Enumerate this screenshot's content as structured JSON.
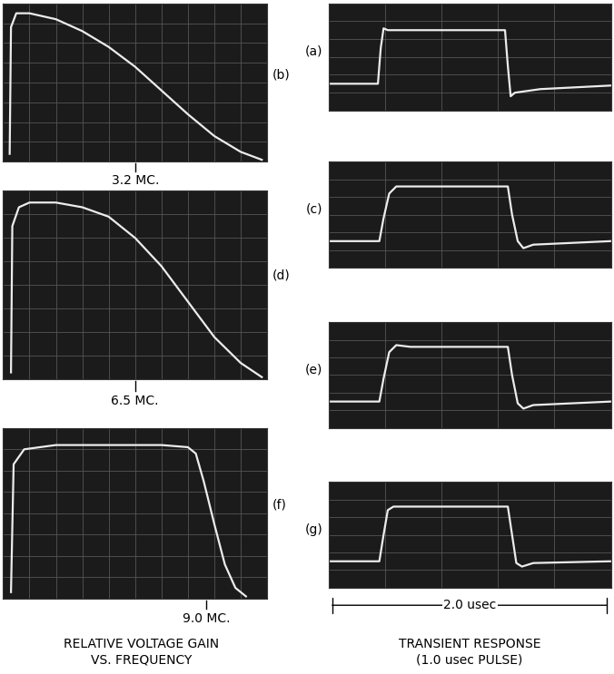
{
  "chart_data": [
    {
      "type": "line",
      "title": "(b)",
      "annotation": "3.2 MC.",
      "marker_x": 5.0,
      "x": [
        0.25,
        0.3,
        0.5,
        1,
        2,
        3,
        4,
        5,
        6,
        7,
        8,
        9,
        9.8
      ],
      "values": [
        0.4,
        6.8,
        7.5,
        7.5,
        7.2,
        6.6,
        5.8,
        4.8,
        3.6,
        2.4,
        1.3,
        0.5,
        0.1
      ],
      "xlim": [
        0,
        10
      ],
      "ylim": [
        0,
        8
      ],
      "xticks": [
        0,
        1,
        2,
        3,
        4,
        5,
        6,
        7,
        8,
        9,
        10
      ],
      "yticks": [
        0,
        1,
        2,
        3,
        4,
        5,
        6,
        7,
        8
      ],
      "grid": true,
      "tick_labels": false,
      "color": "#ececec"
    },
    {
      "type": "line",
      "title": "(d)",
      "annotation": "6.5 MC.",
      "marker_x": 5.0,
      "x": [
        0.3,
        0.35,
        0.6,
        1,
        2,
        3,
        4,
        5,
        6,
        7,
        8,
        9,
        9.8
      ],
      "values": [
        0.3,
        6.5,
        7.3,
        7.5,
        7.5,
        7.3,
        6.9,
        6.0,
        4.8,
        3.3,
        1.8,
        0.7,
        0.1
      ],
      "xlim": [
        0,
        10
      ],
      "ylim": [
        0,
        8
      ],
      "xticks": [
        0,
        1,
        2,
        3,
        4,
        5,
        6,
        7,
        8,
        9,
        10
      ],
      "yticks": [
        0,
        1,
        2,
        3,
        4,
        5,
        6,
        7,
        8
      ],
      "grid": true,
      "tick_labels": false,
      "color": "#ececec"
    },
    {
      "type": "line",
      "title": "(f)",
      "annotation": "9.0 MC.",
      "marker_x": 7.7,
      "x": [
        0.3,
        0.4,
        0.8,
        2,
        4,
        6,
        7,
        7.3,
        7.6,
        8,
        8.4,
        8.8,
        9.2
      ],
      "values": [
        0.3,
        6.3,
        7.0,
        7.2,
        7.2,
        7.2,
        7.1,
        6.8,
        5.5,
        3.5,
        1.6,
        0.5,
        0.1
      ],
      "xlim": [
        0,
        10
      ],
      "ylim": [
        0,
        8
      ],
      "xticks": [
        0,
        1,
        2,
        3,
        4,
        5,
        6,
        7,
        8,
        9,
        10
      ],
      "yticks": [
        0,
        1,
        2,
        3,
        4,
        5,
        6,
        7,
        8
      ],
      "grid": true,
      "tick_labels": false,
      "color": "#ececec"
    },
    {
      "type": "line",
      "title": "(a)",
      "x": [
        0,
        0.35,
        0.37,
        0.39,
        0.42,
        1.25,
        1.27,
        1.29,
        1.32,
        1.5,
        2.0
      ],
      "values": [
        1.5,
        1.5,
        3.5,
        4.6,
        4.5,
        4.5,
        2.5,
        0.8,
        1.0,
        1.2,
        1.4
      ],
      "xlim": [
        0,
        2.0
      ],
      "ylim": [
        0,
        6
      ],
      "xticks": [
        0,
        0.4,
        0.8,
        1.2,
        1.6,
        2.0
      ],
      "yticks": [
        0,
        1,
        2,
        3,
        4,
        5,
        6
      ],
      "grid": true,
      "tick_labels": false,
      "color": "#ececec"
    },
    {
      "type": "line",
      "title": "(c)",
      "x": [
        0,
        0.36,
        0.39,
        0.43,
        0.48,
        0.55,
        1.27,
        1.3,
        1.34,
        1.38,
        1.45,
        2.0
      ],
      "values": [
        1.5,
        1.5,
        2.8,
        4.2,
        4.6,
        4.6,
        4.6,
        3.0,
        1.5,
        1.1,
        1.3,
        1.5
      ],
      "xlim": [
        0,
        2.0
      ],
      "ylim": [
        0,
        6
      ],
      "xticks": [
        0,
        0.4,
        0.8,
        1.2,
        1.6,
        2.0
      ],
      "yticks": [
        0,
        1,
        2,
        3,
        4,
        5,
        6
      ],
      "grid": true,
      "tick_labels": false,
      "color": "#ececec"
    },
    {
      "type": "line",
      "title": "(e)",
      "x": [
        0,
        0.36,
        0.39,
        0.43,
        0.48,
        0.58,
        1.27,
        1.3,
        1.34,
        1.38,
        1.45,
        2.0
      ],
      "values": [
        1.5,
        1.5,
        2.8,
        4.3,
        4.7,
        4.6,
        4.6,
        3.0,
        1.4,
        1.1,
        1.3,
        1.5
      ],
      "xlim": [
        0,
        2.0
      ],
      "ylim": [
        0,
        6
      ],
      "xticks": [
        0,
        0.4,
        0.8,
        1.2,
        1.6,
        2.0
      ],
      "yticks": [
        0,
        1,
        2,
        3,
        4,
        5,
        6
      ],
      "grid": true,
      "tick_labels": false,
      "color": "#ececec"
    },
    {
      "type": "line",
      "title": "(g)",
      "x": [
        0,
        0.36,
        0.39,
        0.42,
        0.46,
        1.27,
        1.3,
        1.33,
        1.37,
        1.45,
        2.0
      ],
      "values": [
        1.5,
        1.5,
        3.0,
        4.4,
        4.6,
        4.6,
        3.0,
        1.4,
        1.2,
        1.4,
        1.5
      ],
      "xlim": [
        0,
        2.0
      ],
      "ylim": [
        0,
        6
      ],
      "xticks": [
        0,
        0.4,
        0.8,
        1.2,
        1.6,
        2.0
      ],
      "yticks": [
        0,
        1,
        2,
        3,
        4,
        5,
        6
      ],
      "grid": true,
      "tick_labels": false,
      "color": "#ececec"
    }
  ],
  "figure": {
    "left_caption": "RELATIVE VOLTAGE GAIN\nVS. FREQUENCY",
    "right_caption": "TRANSIENT RESPONSE\n(1.0 usec PULSE)",
    "time_span": "2.0 usec"
  }
}
